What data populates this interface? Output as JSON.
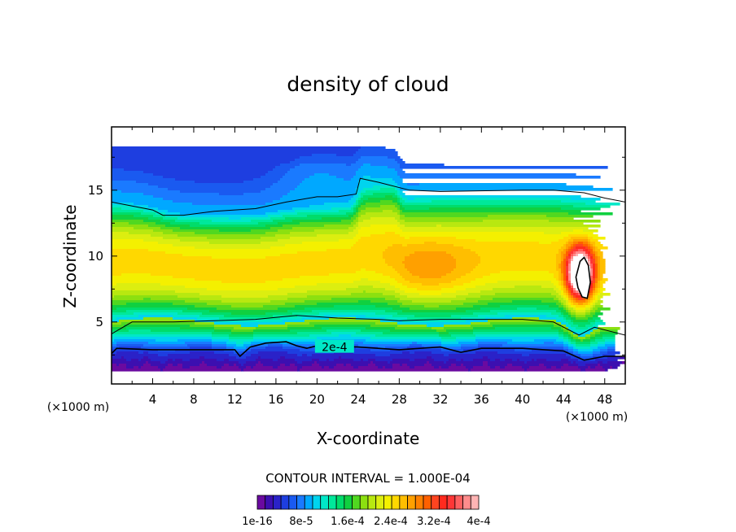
{
  "chart_data": {
    "type": "heatmap",
    "subtype": "filled-contour",
    "title": "density of cloud",
    "xlabel": "X-coordinate",
    "ylabel": "Z-coordinate",
    "x_unit": "(×1000 m)",
    "y_unit": "(×1000 m)",
    "xlim": [
      0,
      50
    ],
    "ylim": [
      0.3,
      19.8
    ],
    "x_ticks": [
      4,
      8,
      12,
      16,
      20,
      24,
      28,
      32,
      36,
      40,
      44,
      48
    ],
    "y_ticks": [
      5,
      10,
      15
    ],
    "contour_interval_text": "CONTOUR INTERVAL = 1.000E-04",
    "contour_lines": [
      {
        "level": "1e-4",
        "label": "",
        "points": [
          [
            0,
            14.1
          ],
          [
            4,
            13.5
          ],
          [
            5,
            13.1
          ],
          [
            7,
            13.1
          ],
          [
            10,
            13.4
          ],
          [
            14,
            13.6
          ],
          [
            17,
            14.1
          ],
          [
            20,
            14.5
          ],
          [
            22,
            14.5
          ],
          [
            23.8,
            14.7
          ],
          [
            24.2,
            15.9
          ],
          [
            26,
            15.6
          ],
          [
            29,
            15.0
          ],
          [
            32,
            14.9
          ],
          [
            40,
            15.0
          ],
          [
            43,
            15.0
          ],
          [
            46,
            14.8
          ],
          [
            48,
            14.4
          ],
          [
            50,
            14.1
          ]
        ]
      },
      {
        "level": "1e-4",
        "label": "",
        "points": [
          [
            0,
            4.1
          ],
          [
            2,
            5.0
          ],
          [
            6,
            5.0
          ],
          [
            10,
            5.1
          ],
          [
            14,
            5.2
          ],
          [
            18,
            5.5
          ],
          [
            22,
            5.3
          ],
          [
            26,
            5.2
          ],
          [
            28,
            5.1
          ],
          [
            32,
            5.2
          ],
          [
            36,
            5.2
          ],
          [
            40,
            5.2
          ],
          [
            43,
            5.0
          ],
          [
            45.5,
            4.0
          ],
          [
            47,
            4.6
          ],
          [
            50,
            4.0
          ]
        ]
      },
      {
        "level": "2e-4",
        "label": "2e-4",
        "label_x": 21.7,
        "label_y": 3.1,
        "points": [
          [
            0,
            2.6
          ],
          [
            0.5,
            3.0
          ],
          [
            4,
            2.9
          ],
          [
            10,
            2.9
          ],
          [
            12,
            2.9
          ],
          [
            12.5,
            2.4
          ],
          [
            13.5,
            3.1
          ],
          [
            15,
            3.4
          ],
          [
            17,
            3.5
          ],
          [
            18,
            3.2
          ],
          [
            19,
            3.0
          ],
          [
            20,
            3.2
          ],
          [
            24,
            3.1
          ],
          [
            28,
            2.9
          ],
          [
            32,
            3.1
          ],
          [
            34,
            2.7
          ],
          [
            36,
            3.0
          ],
          [
            40,
            3.0
          ],
          [
            44,
            2.8
          ],
          [
            46,
            2.1
          ],
          [
            48,
            2.4
          ],
          [
            50,
            2.4
          ]
        ]
      },
      {
        "level": "4e-4",
        "label": "",
        "points": [
          [
            45.2,
            8.4
          ],
          [
            45.6,
            9.6
          ],
          [
            46.0,
            9.9
          ],
          [
            46.4,
            9.3
          ],
          [
            46.6,
            8.0
          ],
          [
            46.3,
            6.8
          ],
          [
            45.8,
            6.9
          ],
          [
            45.4,
            7.6
          ]
        ]
      }
    ],
    "colorbar": {
      "n_levels": 28,
      "labels": [
        "1e-16",
        "8e-5",
        "1.6e-4",
        "2.4e-4",
        "3.2e-4",
        "4e-4"
      ]
    }
  },
  "colors": {
    "palette": [
      "#6a0aa0",
      "#3c0fb0",
      "#2a22c8",
      "#1e3ee0",
      "#1a5af0",
      "#1a7aff",
      "#00a8ff",
      "#00d4ee",
      "#00e8c8",
      "#00e89a",
      "#00dc6a",
      "#10d040",
      "#50d820",
      "#8ce010",
      "#b8e810",
      "#dcee10",
      "#f4f000",
      "#ffd800",
      "#ffbe00",
      "#ffa000",
      "#ff8000",
      "#ff6000",
      "#ff4420",
      "#ff2a1e",
      "#ff3636",
      "#ff6060",
      "#ff8c8c",
      "#ffb4b4"
    ],
    "background": "#ffffff",
    "line": "#000000"
  }
}
